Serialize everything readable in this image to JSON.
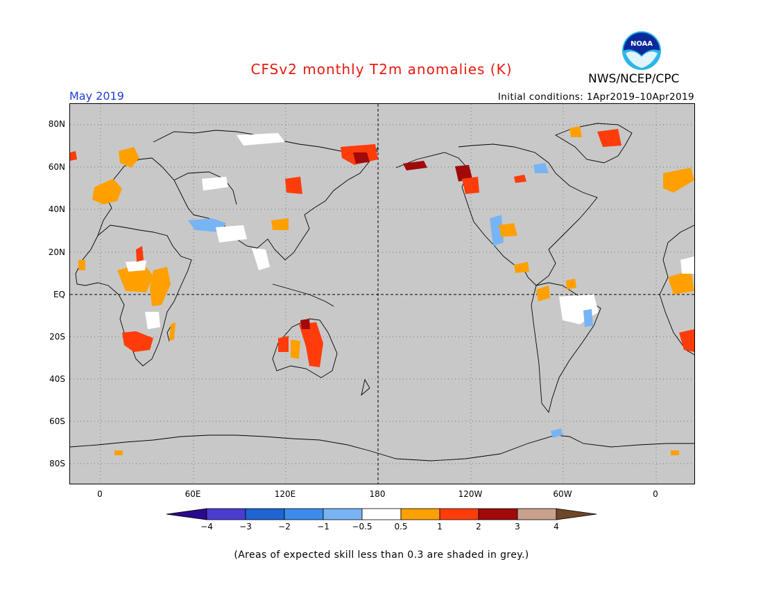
{
  "header": {
    "title": "CFSv2 monthly T2m anomalies (K)",
    "agency": "NWS/NCEP/CPC",
    "logo_text": "NOAA",
    "month": "May 2019",
    "initial_conditions": "Initial conditions: 1Apr2019–10Apr2019"
  },
  "axes": {
    "lat_labels": [
      "80N",
      "60N",
      "40N",
      "20N",
      "EQ",
      "20S",
      "40S",
      "60S",
      "80S"
    ],
    "lon_labels": [
      "0",
      "60E",
      "120E",
      "180",
      "120W",
      "60W",
      "0"
    ]
  },
  "colorbar": {
    "labels": [
      "−4",
      "−3",
      "−2",
      "−1",
      "−0.5",
      "0.5",
      "1",
      "2",
      "3",
      "4"
    ],
    "colors": {
      "below_-4": "#2a0a8c",
      "-4_-3": "#4a3ccf",
      "-3_-2": "#1e64d2",
      "-2_-1": "#3c8cec",
      "-1_-0.5": "#78b4f4",
      "-0.5_0.5": "#ffffff",
      "0.5_1": "#ffa000",
      "1_2": "#ff3c0a",
      "2_3": "#a00a0a",
      "3_4": "#c8a08c",
      "above_4": "#6e4628"
    }
  },
  "mask_color": "#c8c8c8",
  "note": "(Areas of expected skill less than 0.3 are shaded in grey.)"
}
